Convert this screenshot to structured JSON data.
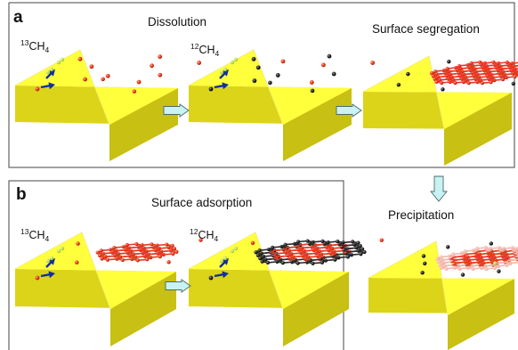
{
  "panel_a": {
    "letter": "a",
    "title": "Dissolution",
    "methane_13": {
      "isotope": "13",
      "formula": "CH",
      "subscript": "4"
    },
    "methane_12": {
      "isotope": "12",
      "formula": "CH",
      "subscript": "4"
    },
    "step_segregation": "Surface segregation",
    "step_precipitation": "Precipitation"
  },
  "panel_b": {
    "letter": "b",
    "title": "Surface adsorption",
    "methane_13": {
      "isotope": "13",
      "formula": "CH",
      "subscript": "4"
    },
    "methane_12": {
      "isotope": "12",
      "formula": "CH",
      "subscript": "4"
    }
  },
  "colors": {
    "substrate_top": "#ffff3c",
    "substrate_side": "#dcd418",
    "carbon_13": "#ee3a1e",
    "carbon_12": "#2a2a2a",
    "bond": "#e63a22",
    "bond_12": "#2a2a2a",
    "arrow_flow": "#c9f2f2",
    "arrow_blue": "#1030a0",
    "hydrogen": "#b8d840"
  },
  "icons": [
    "process-arrow-icon",
    "methane-arrow-icon",
    "hydrogen-pair-icon"
  ]
}
